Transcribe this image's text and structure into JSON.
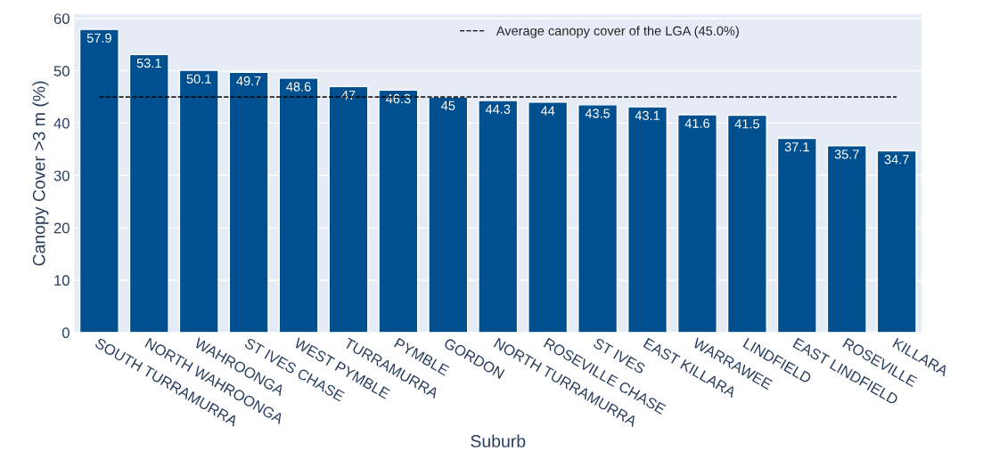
{
  "chart_data": {
    "type": "bar",
    "xlabel": "Suburb",
    "ylabel": "Canopy Cover >3 m (%)",
    "categories": [
      "SOUTH TURRAMURRA",
      "NORTH WAHROONGA",
      "WAHROONGA",
      "ST IVES CHASE",
      "WEST PYMBLE",
      "TURRAMURRA",
      "PYMBLE",
      "GORDON",
      "NORTH TURRAMURRA",
      "ROSEVILLE CHASE",
      "ST IVES",
      "EAST KILLARA",
      "WARRAWEE",
      "LINDFIELD",
      "EAST LINDFIELD",
      "ROSEVILLE",
      "KILLARA"
    ],
    "values": [
      57.9,
      53.1,
      50.1,
      49.7,
      48.6,
      47,
      46.3,
      45,
      44.3,
      44,
      43.5,
      43.1,
      41.6,
      41.5,
      37.1,
      35.7,
      34.7
    ],
    "color": "#00508f",
    "data_labels": true,
    "ylim": [
      0,
      60.8
    ],
    "yticks": [
      0,
      10,
      20,
      30,
      40,
      50,
      60
    ],
    "grid": "y",
    "ref_lines": [
      {
        "axis": "y",
        "value": 45,
        "label": "Average canopy cover of the LGA (45.0%)",
        "color": "#000000",
        "line_style": "dashed"
      }
    ],
    "legend": "top"
  }
}
